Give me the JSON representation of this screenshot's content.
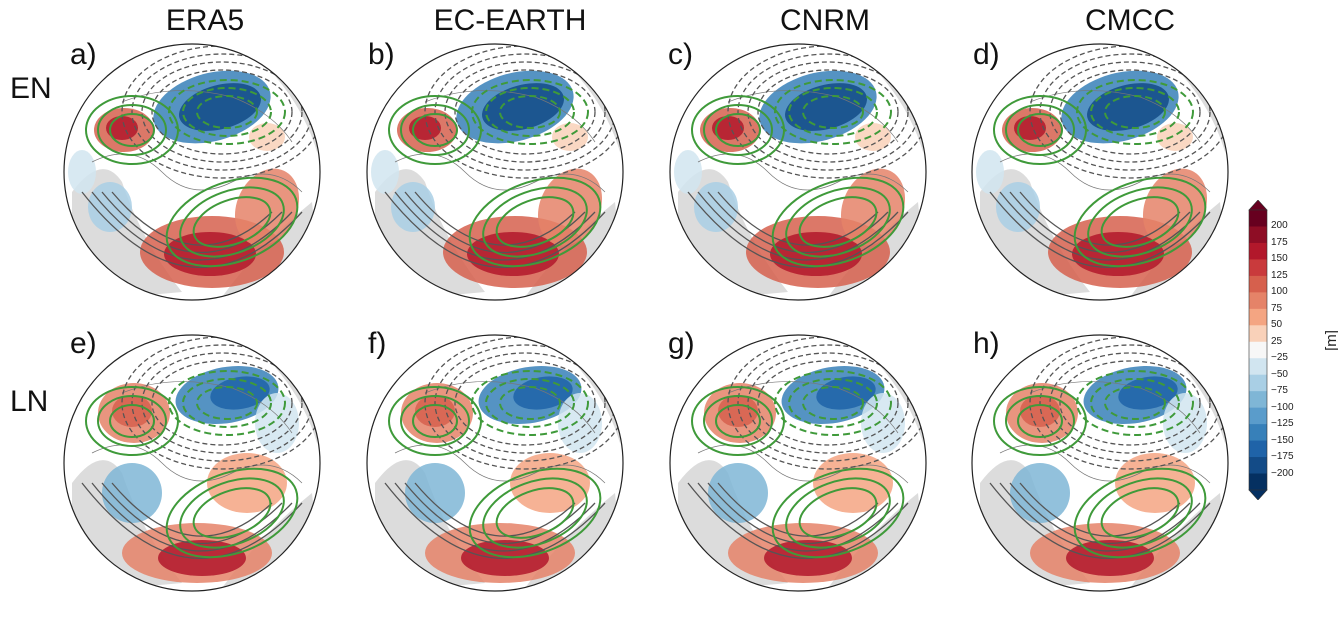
{
  "columns": [
    "ERA5",
    "EC-EARTH",
    "CNRM",
    "CMCC"
  ],
  "rows": [
    "EN",
    "LN"
  ],
  "panel_labels": [
    "a)",
    "b)",
    "c)",
    "d)",
    "e)",
    "f)",
    "g)",
    "h)"
  ],
  "colorbar": {
    "unit": "[m]",
    "ticks": [
      "200",
      "175",
      "150",
      "125",
      "100",
      "75",
      "50",
      "25",
      "−25",
      "−50",
      "−75",
      "−100",
      "−125",
      "−150",
      "−175",
      "−200"
    ],
    "colors": [
      "#67001f",
      "#8e0d25",
      "#b2182b",
      "#c93a3c",
      "#d6604d",
      "#e58368",
      "#f4a582",
      "#f9d1b9",
      "#f7f7f7",
      "#d1e5f0",
      "#a9cfe5",
      "#7fb6d6",
      "#5a9ccb",
      "#3780b9",
      "#1f63a8",
      "#134b87",
      "#053061"
    ]
  },
  "styles": {
    "land": "#dcdcdc",
    "ocean": "#ffffff",
    "contour_green": "#3f9a3a",
    "contour_gray": "#555555"
  }
}
